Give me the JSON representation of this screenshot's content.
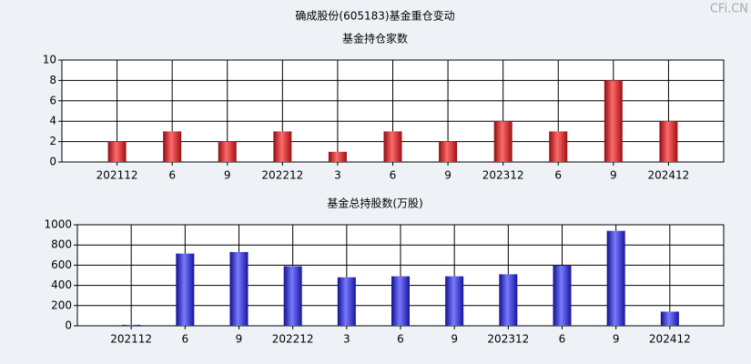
{
  "title": "确成股份(605183)基金重仓变动",
  "watermark": "CFi.CN",
  "chart_data": [
    {
      "type": "bar",
      "title": "基金持仓家数",
      "categories": [
        "202112",
        "6",
        "9",
        "202212",
        "3",
        "6",
        "9",
        "202312",
        "6",
        "9",
        "202412"
      ],
      "values": [
        2,
        3,
        2,
        3,
        1,
        3,
        2,
        4,
        3,
        8,
        4
      ],
      "color": "red",
      "ylim": [
        0,
        10
      ],
      "yticks": [
        0,
        2,
        4,
        6,
        8,
        10
      ],
      "grid": true
    },
    {
      "type": "bar",
      "title": "基金总持股数(万股)",
      "categories": [
        "202112",
        "6",
        "9",
        "202212",
        "3",
        "6",
        "9",
        "202312",
        "6",
        "9",
        "202412"
      ],
      "values": [
        10,
        715,
        730,
        590,
        480,
        490,
        490,
        510,
        595,
        940,
        140
      ],
      "color": "blue",
      "ylim": [
        0,
        1000
      ],
      "yticks": [
        0,
        200,
        400,
        600,
        800,
        1000
      ],
      "grid": true
    }
  ]
}
